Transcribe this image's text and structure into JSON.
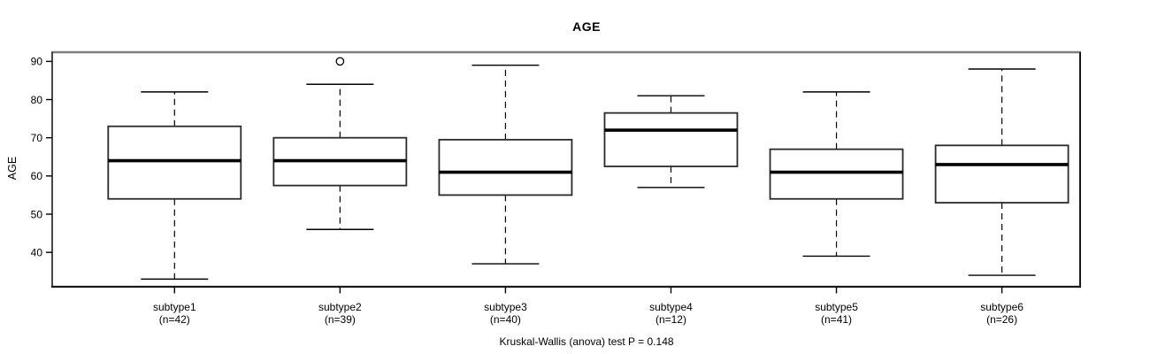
{
  "chart_data": {
    "type": "box",
    "title": "AGE",
    "ylabel": "AGE",
    "caption": "Kruskal-Wallis (anova) test P = 0.148",
    "ylim": [
      31,
      92.4
    ],
    "yticks": [
      40,
      50,
      60,
      70,
      80,
      90
    ],
    "grid": false,
    "legend": "none",
    "colors": {
      "stroke": "#000000",
      "box_border": "#2a2a2a",
      "box_fill": "#ffffff",
      "median": "#000000",
      "plot_border": "#1a1a1a",
      "plot_border_top": "#7f7f7f",
      "background": "#ffffff"
    },
    "groups": [
      {
        "label": "subtype1",
        "sublabel": "(n=42)",
        "n": 42,
        "whisker_low": 33,
        "q1": 54,
        "median": 64,
        "q3": 73,
        "whisker_high": 82,
        "outliers": []
      },
      {
        "label": "subtype2",
        "sublabel": "(n=39)",
        "n": 39,
        "whisker_low": 46,
        "q1": 57.5,
        "median": 64,
        "q3": 70,
        "whisker_high": 84,
        "outliers": [
          90
        ]
      },
      {
        "label": "subtype3",
        "sublabel": "(n=40)",
        "n": 40,
        "whisker_low": 37,
        "q1": 55,
        "median": 61,
        "q3": 69.5,
        "whisker_high": 89,
        "outliers": []
      },
      {
        "label": "subtype4",
        "sublabel": "(n=12)",
        "n": 12,
        "whisker_low": 57,
        "q1": 62.5,
        "median": 72,
        "q3": 76.5,
        "whisker_high": 81,
        "outliers": []
      },
      {
        "label": "subtype5",
        "sublabel": "(n=41)",
        "n": 41,
        "whisker_low": 39,
        "q1": 54,
        "median": 61,
        "q3": 67,
        "whisker_high": 82,
        "outliers": []
      },
      {
        "label": "subtype6",
        "sublabel": "(n=26)",
        "n": 26,
        "whisker_low": 34,
        "q1": 53,
        "median": 63,
        "q3": 68,
        "whisker_high": 88,
        "outliers": []
      }
    ]
  }
}
